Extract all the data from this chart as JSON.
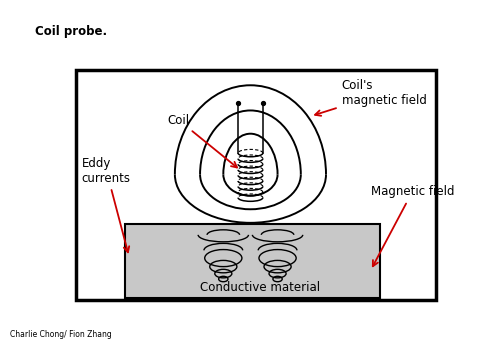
{
  "title": "Coil probe.",
  "credit": "Charlie Chong/ Fion Zhang",
  "bg_color": "#ffffff",
  "gray_color": "#c8c8c8",
  "arrow_color": "#cc0000",
  "labels": {
    "coil": "Coil",
    "coils_magnetic_field": "Coil's\nmagnetic field",
    "eddy_currents": "Eddy\ncurrents",
    "magnetic_field": "Magnetic field",
    "conductive_material": "Conductive material"
  },
  "figsize": [
    5.0,
    3.53
  ],
  "dpi": 100
}
